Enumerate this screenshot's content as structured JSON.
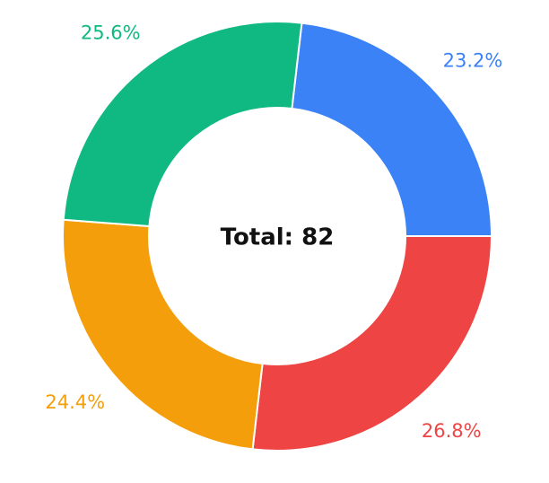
{
  "chart_data": {
    "type": "pie",
    "variant": "donut",
    "center_label": "Total: 82",
    "slices": [
      {
        "label": "23.2%",
        "value": 19,
        "percent": 23.2,
        "color": "#3b82f6"
      },
      {
        "label": "26.8%",
        "value": 22,
        "percent": 26.8,
        "color": "#ef4444"
      },
      {
        "label": "24.4%",
        "value": 20,
        "percent": 24.4,
        "color": "#f59e0b"
      },
      {
        "label": "25.6%",
        "value": 21,
        "percent": 25.6,
        "color": "#10b981"
      }
    ]
  }
}
